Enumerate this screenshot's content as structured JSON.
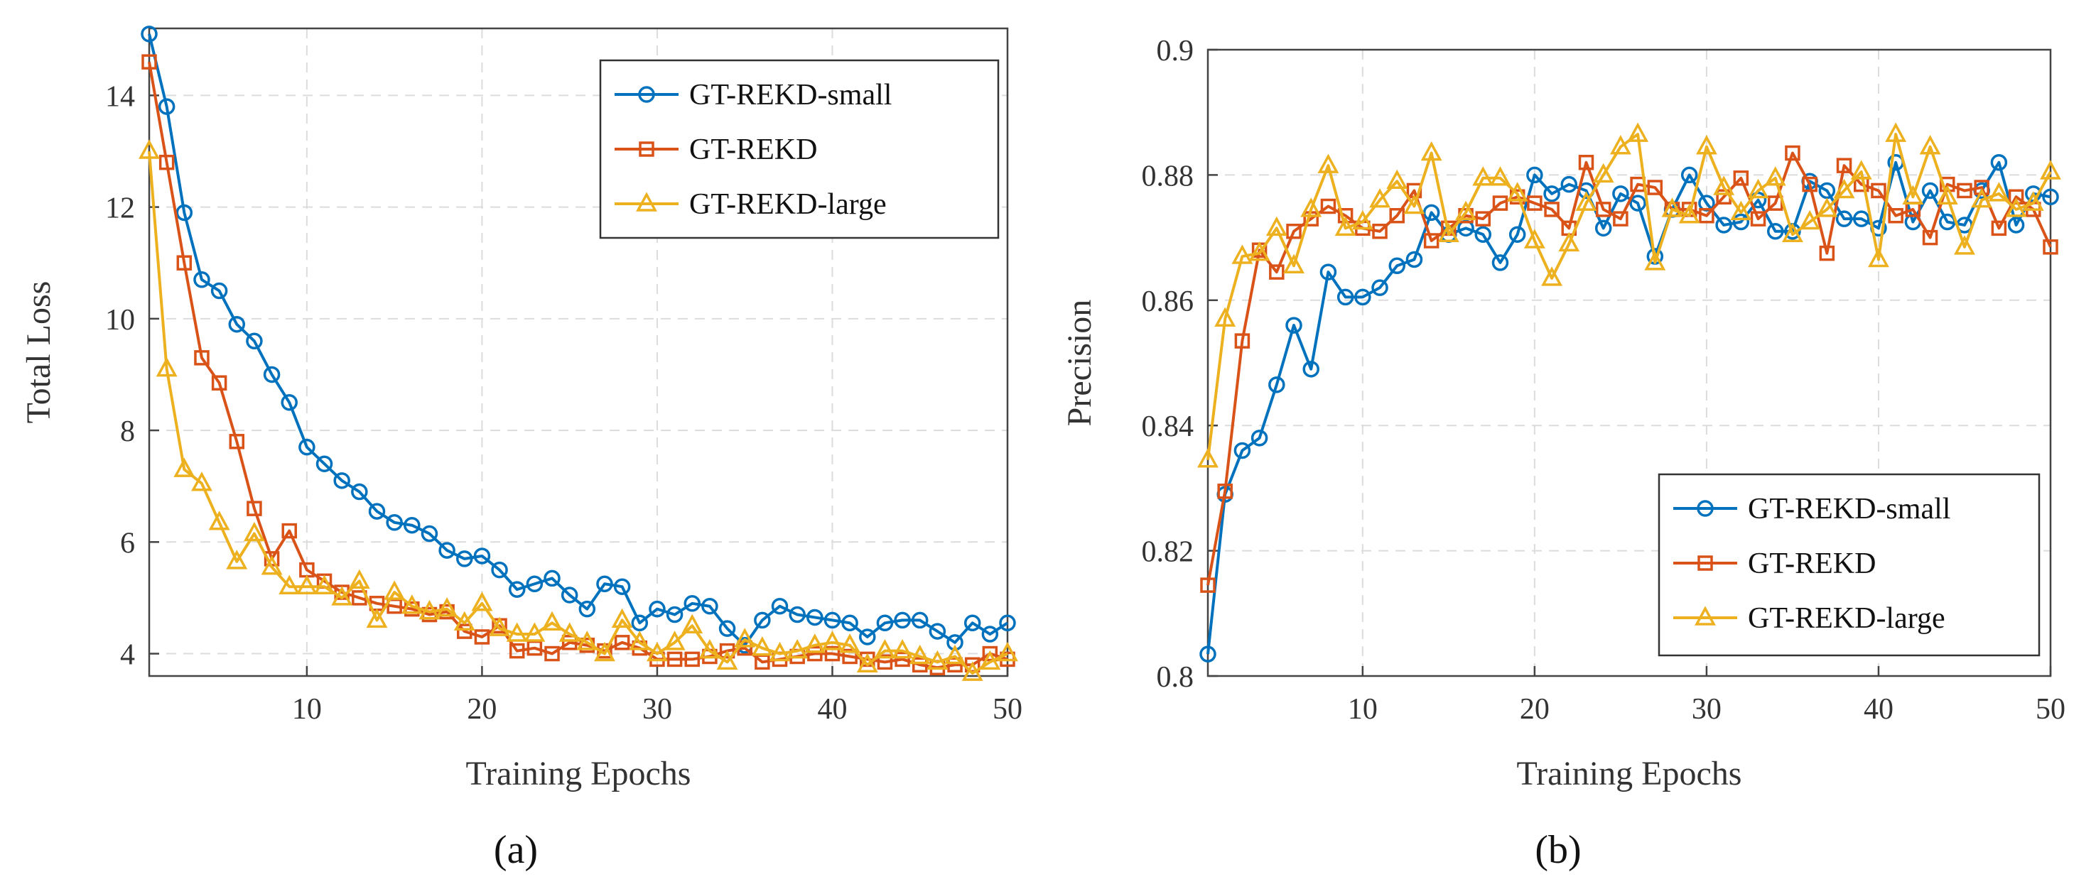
{
  "colors": {
    "small": "#0072BD",
    "base": "#D95319",
    "large": "#EDB120"
  },
  "chart_data": [
    {
      "type": "line",
      "panel_label": "(a)",
      "xlabel": "Training Epochs",
      "ylabel": "Total Loss",
      "xlim": [
        1,
        50
      ],
      "ylim": [
        3.6,
        15.2
      ],
      "xticks": [
        10,
        20,
        30,
        40,
        50
      ],
      "yticks": [
        4,
        6,
        8,
        10,
        12,
        14
      ],
      "ytick_labels": [
        "4",
        "6",
        "8",
        "10",
        "12",
        "14"
      ],
      "grid": true,
      "legend_position": "top-right",
      "series": [
        {
          "name": "GT-REKD-small",
          "color": "#0072BD",
          "marker": "circle",
          "values": [
            15.1,
            13.8,
            11.9,
            10.7,
            10.5,
            9.9,
            9.6,
            9.0,
            8.5,
            7.7,
            7.4,
            7.1,
            6.9,
            6.55,
            6.35,
            6.3,
            6.15,
            5.85,
            5.7,
            5.75,
            5.5,
            5.15,
            5.25,
            5.35,
            5.05,
            4.8,
            5.25,
            5.2,
            4.55,
            4.8,
            4.7,
            4.9,
            4.85,
            4.45,
            4.15,
            4.6,
            4.85,
            4.7,
            4.65,
            4.6,
            4.55,
            4.3,
            4.55,
            4.6,
            4.6,
            4.4,
            4.2,
            4.55,
            4.35,
            4.55
          ]
        },
        {
          "name": "GT-REKD",
          "color": "#D95319",
          "marker": "square",
          "values": [
            14.6,
            12.8,
            11.0,
            9.3,
            8.85,
            7.8,
            6.6,
            5.7,
            6.2,
            5.5,
            5.3,
            5.1,
            5.0,
            4.9,
            4.85,
            4.8,
            4.7,
            4.75,
            4.4,
            4.3,
            4.5,
            4.05,
            4.1,
            4.0,
            4.2,
            4.15,
            4.05,
            4.2,
            4.1,
            3.9,
            3.9,
            3.9,
            3.95,
            4.05,
            4.1,
            3.85,
            3.9,
            3.95,
            4.0,
            4.0,
            3.95,
            3.9,
            3.85,
            3.9,
            3.8,
            3.75,
            3.8,
            3.8,
            4.0,
            3.9
          ]
        },
        {
          "name": "GT-REKD-large",
          "color": "#EDB120",
          "marker": "triangle",
          "values": [
            13.0,
            9.1,
            7.3,
            7.05,
            6.35,
            5.65,
            6.15,
            5.55,
            5.2,
            5.2,
            5.2,
            5.0,
            5.3,
            4.6,
            5.1,
            4.85,
            4.75,
            4.8,
            4.55,
            4.9,
            4.45,
            4.35,
            4.35,
            4.55,
            4.35,
            4.2,
            4.0,
            4.6,
            4.2,
            4.0,
            4.2,
            4.5,
            4.05,
            3.85,
            4.25,
            4.1,
            4.0,
            4.05,
            4.15,
            4.2,
            4.15,
            3.8,
            4.05,
            4.05,
            3.95,
            3.85,
            3.95,
            3.65,
            3.85,
            4.0
          ]
        }
      ]
    },
    {
      "type": "line",
      "panel_label": "(b)",
      "xlabel": "Training Epochs",
      "ylabel": "Precision",
      "xlim": [
        1,
        50
      ],
      "ylim": [
        0.8,
        0.9
      ],
      "xticks": [
        10,
        20,
        30,
        40,
        50
      ],
      "yticks": [
        0.8,
        0.82,
        0.84,
        0.86,
        0.88,
        0.9
      ],
      "ytick_labels": [
        "0.8",
        "0.82",
        "0.84",
        "0.86",
        "0.88",
        "0.9"
      ],
      "grid": true,
      "legend_position": "bottom-right",
      "series": [
        {
          "name": "GT-REKD-small",
          "color": "#0072BD",
          "marker": "circle",
          "values": [
            0.8035,
            0.829,
            0.836,
            0.838,
            0.8465,
            0.856,
            0.849,
            0.8645,
            0.8605,
            0.8605,
            0.862,
            0.8655,
            0.8665,
            0.874,
            0.8705,
            0.8715,
            0.8705,
            0.866,
            0.8705,
            0.88,
            0.877,
            0.8785,
            0.8775,
            0.8715,
            0.877,
            0.8755,
            0.867,
            0.8745,
            0.88,
            0.8755,
            0.872,
            0.8725,
            0.876,
            0.871,
            0.871,
            0.879,
            0.8775,
            0.873,
            0.873,
            0.8715,
            0.882,
            0.8725,
            0.8775,
            0.8725,
            0.872,
            0.8775,
            0.882,
            0.872,
            0.877,
            0.8765
          ]
        },
        {
          "name": "GT-REKD",
          "color": "#D95319",
          "marker": "square",
          "values": [
            0.8145,
            0.8295,
            0.8535,
            0.868,
            0.8645,
            0.871,
            0.873,
            0.875,
            0.8735,
            0.8715,
            0.871,
            0.8735,
            0.8775,
            0.8695,
            0.8715,
            0.8735,
            0.873,
            0.8755,
            0.8765,
            0.8755,
            0.8745,
            0.8715,
            0.882,
            0.8745,
            0.873,
            0.8785,
            0.878,
            0.8745,
            0.8745,
            0.8735,
            0.8765,
            0.8795,
            0.873,
            0.8755,
            0.8835,
            0.8785,
            0.8675,
            0.8815,
            0.8785,
            0.8775,
            0.8735,
            0.8745,
            0.87,
            0.8785,
            0.8775,
            0.878,
            0.8715,
            0.8765,
            0.8745,
            0.8685
          ]
        },
        {
          "name": "GT-REKD-large",
          "color": "#EDB120",
          "marker": "triangle",
          "values": [
            0.8345,
            0.857,
            0.867,
            0.8675,
            0.8715,
            0.8655,
            0.8745,
            0.8815,
            0.8715,
            0.8725,
            0.876,
            0.879,
            0.875,
            0.8835,
            0.8705,
            0.874,
            0.8795,
            0.8795,
            0.877,
            0.8695,
            0.8635,
            0.869,
            0.8755,
            0.88,
            0.8845,
            0.8865,
            0.866,
            0.8745,
            0.8735,
            0.8845,
            0.878,
            0.874,
            0.8775,
            0.8795,
            0.8705,
            0.8725,
            0.8745,
            0.8775,
            0.8805,
            0.8665,
            0.8865,
            0.8765,
            0.8845,
            0.8765,
            0.8685,
            0.876,
            0.877,
            0.8745,
            0.8755,
            0.8805
          ]
        }
      ]
    }
  ]
}
